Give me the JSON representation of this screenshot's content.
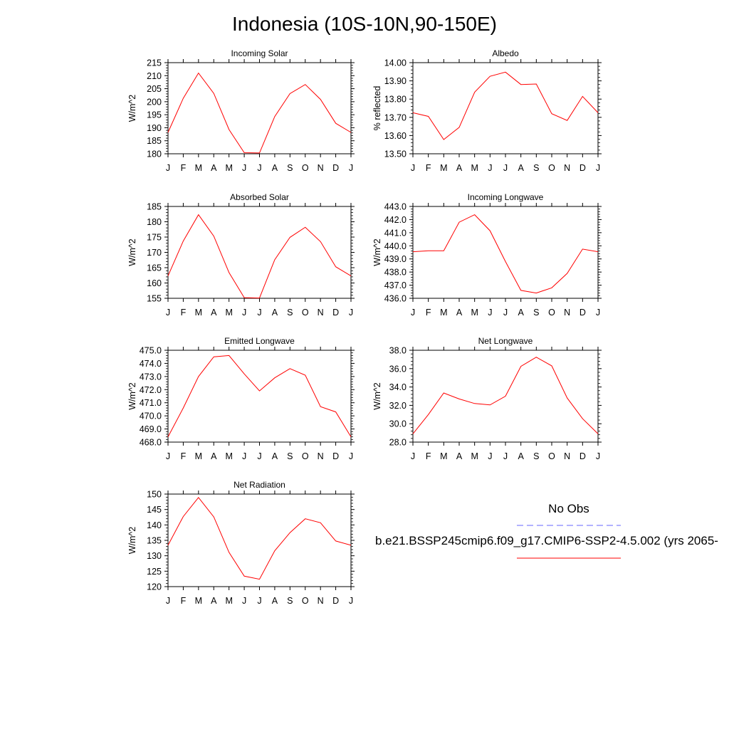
{
  "title": "Indonesia (10S-10N,90-150E)",
  "months": [
    "J",
    "F",
    "M",
    "A",
    "M",
    "J",
    "J",
    "A",
    "S",
    "O",
    "N",
    "D",
    "J"
  ],
  "legend": {
    "obs_label": "No Obs",
    "obs_color": "#6666ff",
    "case_label": "b.e21.BSSP245cmip6.f09_g17.CMIP6-SSP2-4.5.002 (yrs 2065-",
    "case_color": "#ff0000"
  },
  "chart_data": [
    {
      "type": "line",
      "title": "Incoming Solar",
      "ylabel": "W/m^2",
      "ylim": [
        180,
        215
      ],
      "yticks": [
        180,
        185,
        190,
        195,
        200,
        205,
        210,
        215
      ],
      "tick_format": "int",
      "x": [
        "J",
        "F",
        "M",
        "A",
        "M",
        "J",
        "J",
        "A",
        "S",
        "O",
        "N",
        "D",
        "J"
      ],
      "series": [
        {
          "name": "case",
          "values": [
            188.2,
            201.3,
            211.0,
            203.2,
            189.3,
            180.4,
            180.3,
            194.3,
            203.1,
            206.6,
            200.9,
            191.7,
            188.2
          ]
        }
      ]
    },
    {
      "type": "line",
      "title": "Albedo",
      "ylabel": "% reflected",
      "ylim": [
        13.5,
        14.0
      ],
      "yticks": [
        13.5,
        13.6,
        13.7,
        13.8,
        13.9,
        14.0
      ],
      "tick_format": "2",
      "x": [
        "J",
        "F",
        "M",
        "A",
        "M",
        "J",
        "J",
        "A",
        "S",
        "O",
        "N",
        "D",
        "J"
      ],
      "series": [
        {
          "name": "case",
          "values": [
            13.725,
            13.705,
            13.578,
            13.645,
            13.838,
            13.925,
            13.948,
            13.88,
            13.883,
            13.72,
            13.683,
            13.815,
            13.725
          ]
        }
      ]
    },
    {
      "type": "line",
      "title": "Absorbed Solar",
      "ylabel": "W/m^2",
      "ylim": [
        155,
        185
      ],
      "yticks": [
        155,
        160,
        165,
        170,
        175,
        180,
        185
      ],
      "tick_format": "int",
      "x": [
        "J",
        "F",
        "M",
        "A",
        "M",
        "J",
        "J",
        "A",
        "S",
        "O",
        "N",
        "D",
        "J"
      ],
      "series": [
        {
          "name": "case",
          "values": [
            162.3,
            173.7,
            182.3,
            175.3,
            163.4,
            155.2,
            155.1,
            167.6,
            174.9,
            178.2,
            173.5,
            165.3,
            162.3
          ]
        }
      ]
    },
    {
      "type": "line",
      "title": "Incoming Longwave",
      "ylabel": "W/m^2",
      "ylim": [
        436.0,
        443.0
      ],
      "yticks": [
        436.0,
        437.0,
        438.0,
        439.0,
        440.0,
        441.0,
        442.0,
        443.0
      ],
      "tick_format": "1",
      "x": [
        "J",
        "F",
        "M",
        "A",
        "M",
        "J",
        "J",
        "A",
        "S",
        "O",
        "N",
        "D",
        "J"
      ],
      "series": [
        {
          "name": "case",
          "values": [
            439.55,
            439.62,
            439.62,
            441.8,
            442.37,
            441.15,
            438.8,
            436.6,
            436.4,
            436.8,
            437.9,
            439.75,
            439.55
          ]
        }
      ]
    },
    {
      "type": "line",
      "title": "Emitted Longwave",
      "ylabel": "W/m^2",
      "ylim": [
        468.0,
        475.0
      ],
      "yticks": [
        468.0,
        469.0,
        470.0,
        471.0,
        472.0,
        473.0,
        474.0,
        475.0
      ],
      "tick_format": "1",
      "x": [
        "J",
        "F",
        "M",
        "A",
        "M",
        "J",
        "J",
        "A",
        "S",
        "O",
        "N",
        "D",
        "J"
      ],
      "series": [
        {
          "name": "case",
          "values": [
            468.4,
            470.6,
            473.0,
            474.5,
            474.6,
            473.2,
            471.9,
            472.9,
            473.6,
            473.1,
            470.7,
            470.3,
            468.4
          ]
        }
      ]
    },
    {
      "type": "line",
      "title": "Net Longwave",
      "ylabel": "W/m^2",
      "ylim": [
        28.0,
        38.0
      ],
      "yticks": [
        28.0,
        30.0,
        32.0,
        34.0,
        36.0,
        38.0
      ],
      "tick_format": "1",
      "x": [
        "J",
        "F",
        "M",
        "A",
        "M",
        "J",
        "J",
        "A",
        "S",
        "O",
        "N",
        "D",
        "J"
      ],
      "series": [
        {
          "name": "case",
          "values": [
            28.9,
            31.0,
            33.35,
            32.7,
            32.2,
            32.05,
            33.0,
            36.25,
            37.25,
            36.3,
            32.8,
            30.55,
            28.9
          ]
        }
      ]
    },
    {
      "type": "line",
      "title": "Net Radiation",
      "ylabel": "W/m^2",
      "ylim": [
        120,
        150
      ],
      "yticks": [
        120,
        125,
        130,
        135,
        140,
        145,
        150
      ],
      "tick_format": "int",
      "x": [
        "J",
        "F",
        "M",
        "A",
        "M",
        "J",
        "J",
        "A",
        "S",
        "O",
        "N",
        "D",
        "J"
      ],
      "series": [
        {
          "name": "case",
          "values": [
            133.4,
            142.7,
            148.9,
            142.6,
            131.1,
            123.4,
            122.4,
            131.6,
            137.5,
            142.0,
            140.7,
            134.8,
            133.4
          ]
        }
      ]
    }
  ]
}
